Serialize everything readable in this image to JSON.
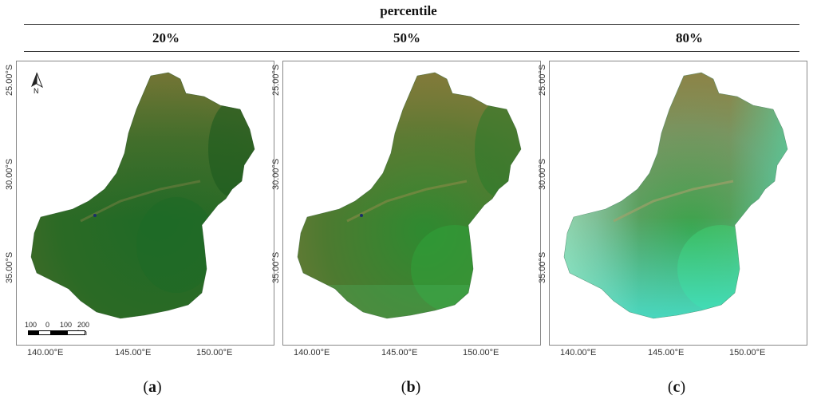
{
  "header": {
    "title": "percentile"
  },
  "columns": [
    {
      "percentile": "20%",
      "label_letter": "a"
    },
    {
      "percentile": "50%",
      "label_letter": "b"
    },
    {
      "percentile": "80%",
      "label_letter": "c"
    }
  ],
  "axes": {
    "latitude_labels": [
      "25.00°S",
      "30.00°S",
      "35.00°S"
    ],
    "longitude_labels": [
      "140.00°E",
      "145.00°E",
      "150.00°E"
    ]
  },
  "north_arrow": {
    "letter": "N"
  },
  "scale_bar": {
    "labels": [
      "100",
      "0",
      "100",
      "200 km"
    ]
  },
  "colors": {
    "panel_a_dark": "#1f5e1f",
    "panel_a_light": "#5d7a2e",
    "panel_b_dark": "#2d6f2a",
    "panel_b_light": "#7a8a3c",
    "panel_c_dark": "#3a8f4a",
    "panel_c_light": "#9acf8c",
    "panel_c_cyan": "#38f2e6",
    "brown": "#8a7a3a"
  }
}
